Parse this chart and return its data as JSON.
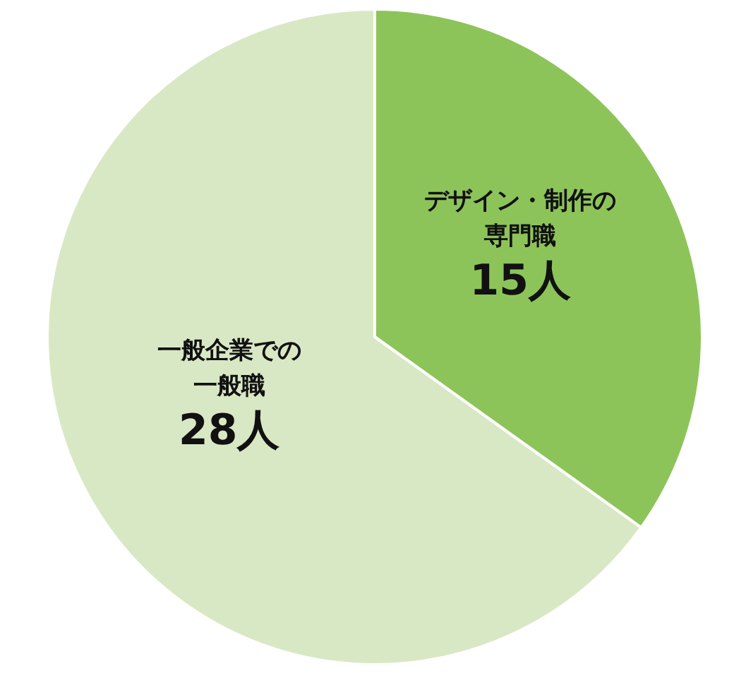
{
  "chart_data": {
    "type": "pie",
    "categories": [
      "デザイン・制作の専門職",
      "一般企業での一般職"
    ],
    "values": [
      15,
      28
    ],
    "colors": [
      "#8dc459",
      "#d9e8c4"
    ],
    "value_labels": [
      "15人",
      "28人"
    ]
  }
}
